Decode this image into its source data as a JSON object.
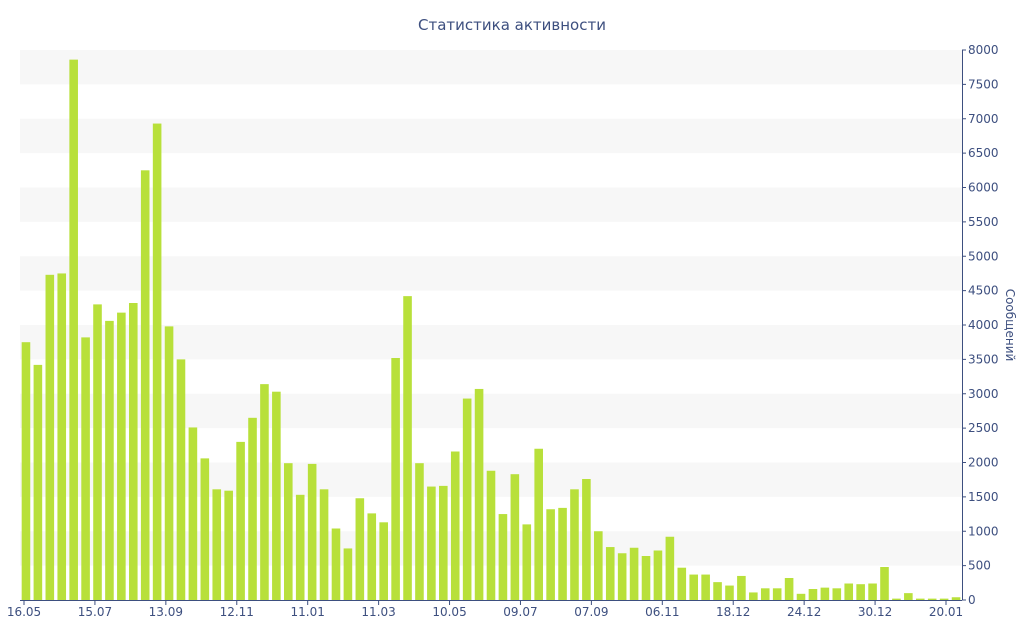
{
  "chart_data": {
    "type": "bar",
    "title": "Статистика активности",
    "ylabel": "Сообщений",
    "xlabel": "",
    "ylim": [
      0,
      8000
    ],
    "y_ticks": [
      0,
      500,
      1000,
      1500,
      2000,
      2500,
      3000,
      3500,
      4000,
      4500,
      5000,
      5500,
      6000,
      6500,
      7000,
      7500,
      8000
    ],
    "x_tick_labels": [
      "16.05",
      "15.07",
      "13.09",
      "12.11",
      "11.01",
      "11.03",
      "10.05",
      "09.07",
      "07.09",
      "06.11",
      "18.12",
      "24.12",
      "30.12",
      "20.01"
    ],
    "y_axis_side": "right",
    "grid": "alternating horizontal bands",
    "legend": "none",
    "bar_color": "#b8e03a",
    "band_color": "#f7f7f7",
    "text_color": "#3d4f7f",
    "axis_color": "#3d4f7f",
    "values": [
      3750,
      3420,
      4730,
      4750,
      7860,
      3820,
      4300,
      4060,
      4180,
      4320,
      6250,
      6930,
      3980,
      3500,
      2510,
      2060,
      1610,
      1590,
      2300,
      2650,
      3140,
      3030,
      1990,
      1530,
      1980,
      1610,
      1040,
      750,
      1480,
      1260,
      1130,
      3520,
      4420,
      1990,
      1650,
      1660,
      2160,
      2930,
      3070,
      1880,
      1250,
      1830,
      1100,
      2200,
      1320,
      1340,
      1610,
      1760,
      1000,
      770,
      680,
      760,
      640,
      720,
      920,
      470,
      370,
      370,
      260,
      210,
      350,
      110,
      170,
      170,
      320,
      90,
      160,
      180,
      170,
      240,
      230,
      240,
      480,
      20,
      100,
      20,
      20,
      20,
      40
    ]
  }
}
